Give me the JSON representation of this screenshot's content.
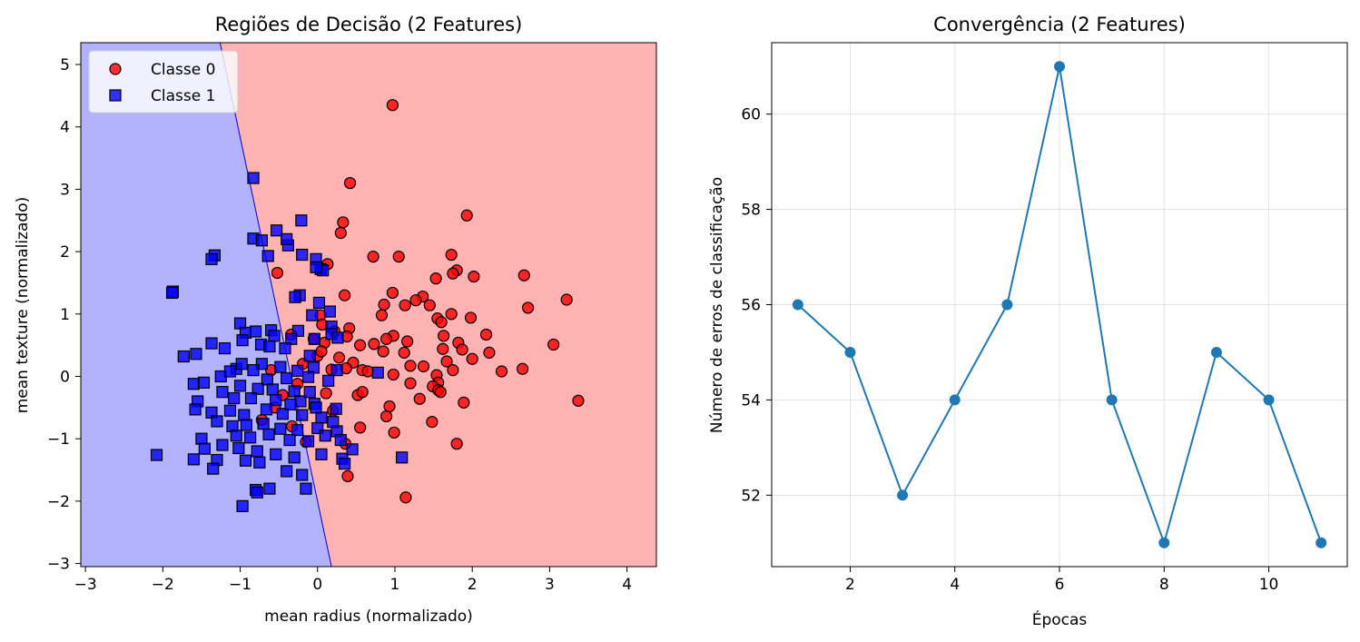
{
  "chart_data": [
    {
      "type": "scatter",
      "title": "Regiões de Decisão (2 Features)",
      "xlabel": "mean radius (normalizado)",
      "ylabel": "mean texture (normalizado)",
      "xlim": [
        -3.06,
        4.38
      ],
      "ylim": [
        -3.05,
        5.35
      ],
      "xticks": [
        -3,
        -2,
        -1,
        0,
        1,
        2,
        3,
        4
      ],
      "yticks": [
        -3,
        -2,
        -1,
        0,
        1,
        2,
        3,
        4,
        5
      ],
      "legend_position": "upper-left",
      "regions": {
        "class0_color": "#ffb2b2",
        "class1_color": "#b2b2ff",
        "boundary": [
          [
            -1.26,
            5.35
          ],
          [
            0.18,
            -3.05
          ]
        ]
      },
      "series": [
        {
          "name": "Classe 0",
          "marker": "circle",
          "color": "#ff0000",
          "points": [
            [
              0.97,
              4.35
            ],
            [
              0.42,
              3.1
            ],
            [
              1.93,
              2.58
            ],
            [
              0.33,
              2.47
            ],
            [
              0.3,
              2.3
            ],
            [
              1.73,
              1.95
            ],
            [
              0.72,
              1.92
            ],
            [
              1.05,
              1.92
            ],
            [
              1.8,
              1.7
            ],
            [
              1.75,
              1.65
            ],
            [
              2.02,
              1.6
            ],
            [
              2.67,
              1.62
            ],
            [
              0.13,
              1.8
            ],
            [
              -0.52,
              1.66
            ],
            [
              0.35,
              1.3
            ],
            [
              0.97,
              1.34
            ],
            [
              1.36,
              1.28
            ],
            [
              1.53,
              1.57
            ],
            [
              1.27,
              1.22
            ],
            [
              1.45,
              1.14
            ],
            [
              1.73,
              1.0
            ],
            [
              1.55,
              0.93
            ],
            [
              1.98,
              0.94
            ],
            [
              2.72,
              1.1
            ],
            [
              3.22,
              1.23
            ],
            [
              0.86,
              1.15
            ],
            [
              1.13,
              1.14
            ],
            [
              0.83,
              0.98
            ],
            [
              0.41,
              0.77
            ],
            [
              0.22,
              0.72
            ],
            [
              0.04,
              0.98
            ],
            [
              0.09,
              0.54
            ],
            [
              0.38,
              0.64
            ],
            [
              0.98,
              0.65
            ],
            [
              0.89,
              0.6
            ],
            [
              1.6,
              0.87
            ],
            [
              1.63,
              0.65
            ],
            [
              2.18,
              0.67
            ],
            [
              0.55,
              0.5
            ],
            [
              0.73,
              0.52
            ],
            [
              1.16,
              0.56
            ],
            [
              0.85,
              0.4
            ],
            [
              1.12,
              0.38
            ],
            [
              1.62,
              0.44
            ],
            [
              1.82,
              0.54
            ],
            [
              1.87,
              0.43
            ],
            [
              2.22,
              0.38
            ],
            [
              3.05,
              0.51
            ],
            [
              1.2,
              0.17
            ],
            [
              1.37,
              0.16
            ],
            [
              1.67,
              0.24
            ],
            [
              1.75,
              0.1
            ],
            [
              2.0,
              0.28
            ],
            [
              2.38,
              0.08
            ],
            [
              2.65,
              0.12
            ],
            [
              0.46,
              0.22
            ],
            [
              0.37,
              0.13
            ],
            [
              0.18,
              0.11
            ],
            [
              -0.0,
              0.33
            ],
            [
              0.58,
              0.1
            ],
            [
              0.65,
              0.08
            ],
            [
              0.98,
              0.03
            ],
            [
              1.54,
              0.02
            ],
            [
              1.56,
              -0.1
            ],
            [
              1.2,
              -0.11
            ],
            [
              1.49,
              -0.16
            ],
            [
              1.56,
              -0.22
            ],
            [
              1.59,
              -0.25
            ],
            [
              0.52,
              -0.3
            ],
            [
              0.58,
              -0.25
            ],
            [
              1.32,
              -0.36
            ],
            [
              1.89,
              -0.42
            ],
            [
              3.37,
              -0.39
            ],
            [
              0.89,
              -0.64
            ],
            [
              0.93,
              -0.48
            ],
            [
              1.48,
              -0.73
            ],
            [
              0.55,
              -0.82
            ],
            [
              0.99,
              -0.9
            ],
            [
              0.36,
              -1.08
            ],
            [
              1.8,
              -1.08
            ],
            [
              0.39,
              -1.6
            ],
            [
              1.14,
              -1.94
            ],
            [
              -0.05,
              0.6
            ],
            [
              0.06,
              0.83
            ],
            [
              -0.34,
              0.67
            ],
            [
              0.05,
              0.4
            ],
            [
              0.28,
              0.3
            ],
            [
              -0.19,
              0.2
            ],
            [
              -0.45,
              -0.3
            ],
            [
              -0.55,
              -0.5
            ],
            [
              -0.33,
              -0.8
            ],
            [
              -0.15,
              -1.05
            ],
            [
              -0.26,
              -0.12
            ],
            [
              -0.6,
              0.1
            ],
            [
              0.11,
              -0.27
            ],
            [
              0.2,
              -0.55
            ],
            [
              -0.72,
              -0.7
            ]
          ]
        },
        {
          "name": "Classe 1",
          "marker": "square",
          "color": "#0000ff",
          "points": [
            [
              -0.83,
              3.18
            ],
            [
              -0.21,
              2.5
            ],
            [
              -0.83,
              2.21
            ],
            [
              -0.72,
              2.18
            ],
            [
              -0.53,
              2.34
            ],
            [
              -0.38,
              2.1
            ],
            [
              -0.4,
              2.2
            ],
            [
              -0.64,
              1.93
            ],
            [
              -0.2,
              1.95
            ],
            [
              -1.33,
              1.94
            ],
            [
              -1.37,
              1.88
            ],
            [
              -0.02,
              1.88
            ],
            [
              0.04,
              1.72
            ],
            [
              0.07,
              1.7
            ],
            [
              -0.02,
              1.75
            ],
            [
              -1.87,
              1.36
            ],
            [
              -1.88,
              1.34
            ],
            [
              -0.23,
              1.3
            ],
            [
              -0.29,
              1.27
            ],
            [
              0.02,
              1.18
            ],
            [
              -0.07,
              0.98
            ],
            [
              0.16,
              1.04
            ],
            [
              0.18,
              0.8
            ],
            [
              -1.0,
              0.85
            ],
            [
              -0.93,
              0.7
            ],
            [
              -0.8,
              0.72
            ],
            [
              -0.6,
              0.74
            ],
            [
              -0.56,
              0.65
            ],
            [
              -0.25,
              0.73
            ],
            [
              -0.04,
              0.6
            ],
            [
              0.18,
              0.68
            ],
            [
              -0.34,
              0.6
            ],
            [
              -1.37,
              0.53
            ],
            [
              -0.97,
              0.58
            ],
            [
              -0.73,
              0.51
            ],
            [
              -0.62,
              0.48
            ],
            [
              -0.42,
              0.45
            ],
            [
              -1.57,
              0.36
            ],
            [
              -1.73,
              0.32
            ],
            [
              -1.2,
              0.45
            ],
            [
              -0.1,
              0.33
            ],
            [
              0.26,
              0.62
            ],
            [
              -1.05,
              0.12
            ],
            [
              -0.98,
              0.2
            ],
            [
              -0.72,
              0.2
            ],
            [
              -0.48,
              0.15
            ],
            [
              -0.26,
              0.09
            ],
            [
              -0.05,
              0.14
            ],
            [
              0.25,
              0.1
            ],
            [
              0.78,
              0.06
            ],
            [
              -1.25,
              0.0
            ],
            [
              -1.13,
              0.08
            ],
            [
              -0.83,
              0.1
            ],
            [
              -0.65,
              -0.05
            ],
            [
              -0.4,
              -0.03
            ],
            [
              -0.12,
              -0.01
            ],
            [
              0.14,
              -0.07
            ],
            [
              -1.6,
              -0.12
            ],
            [
              -1.47,
              -0.1
            ],
            [
              -1.0,
              -0.15
            ],
            [
              -0.77,
              -0.2
            ],
            [
              -0.58,
              -0.21
            ],
            [
              -0.3,
              -0.24
            ],
            [
              -1.23,
              -0.25
            ],
            [
              -1.08,
              -0.35
            ],
            [
              -0.86,
              -0.35
            ],
            [
              -0.54,
              -0.38
            ],
            [
              -0.22,
              -0.4
            ],
            [
              -0.04,
              -0.44
            ],
            [
              0.24,
              -0.52
            ],
            [
              -1.55,
              -0.4
            ],
            [
              -1.58,
              -0.53
            ],
            [
              -1.37,
              -0.58
            ],
            [
              -1.13,
              -0.55
            ],
            [
              -0.95,
              -0.62
            ],
            [
              -0.66,
              -0.53
            ],
            [
              -0.45,
              -0.6
            ],
            [
              -0.2,
              -0.62
            ],
            [
              0.05,
              -0.66
            ],
            [
              -1.3,
              -0.72
            ],
            [
              -1.1,
              -0.8
            ],
            [
              -0.92,
              -0.78
            ],
            [
              -0.7,
              -0.76
            ],
            [
              -0.48,
              -0.84
            ],
            [
              -0.26,
              -0.86
            ],
            [
              0.0,
              -0.83
            ],
            [
              0.25,
              -0.88
            ],
            [
              -1.05,
              -0.95
            ],
            [
              -0.87,
              -0.98
            ],
            [
              -0.63,
              -0.93
            ],
            [
              -0.36,
              -1.02
            ],
            [
              -0.12,
              -1.04
            ],
            [
              0.3,
              -1.02
            ],
            [
              -1.5,
              -1.0
            ],
            [
              -1.46,
              -1.16
            ],
            [
              -1.23,
              -1.1
            ],
            [
              -1.02,
              -1.15
            ],
            [
              -0.78,
              -1.2
            ],
            [
              -0.54,
              -1.25
            ],
            [
              -0.3,
              -1.3
            ],
            [
              0.05,
              -1.25
            ],
            [
              0.32,
              -1.32
            ],
            [
              0.45,
              -1.17
            ],
            [
              -2.08,
              -1.26
            ],
            [
              -1.6,
              -1.33
            ],
            [
              -1.3,
              -1.34
            ],
            [
              -1.35,
              -1.48
            ],
            [
              -0.93,
              -1.35
            ],
            [
              -0.75,
              -1.38
            ],
            [
              -0.4,
              -1.52
            ],
            [
              -0.2,
              -1.58
            ],
            [
              0.35,
              -1.4
            ],
            [
              1.09,
              -1.3
            ],
            [
              -0.8,
              -1.82
            ],
            [
              -0.62,
              -1.8
            ],
            [
              -0.78,
              -1.86
            ],
            [
              -0.15,
              -1.8
            ],
            [
              -0.97,
              -2.08
            ],
            [
              -0.02,
              -0.5
            ],
            [
              0.2,
              -0.73
            ],
            [
              -0.35,
              -0.45
            ],
            [
              -0.1,
              -0.25
            ],
            [
              0.1,
              -0.95
            ]
          ]
        }
      ]
    },
    {
      "type": "line",
      "title": "Convergência (2 Features)",
      "xlabel": "Épocas",
      "ylabel": "Número de erros de classificação",
      "x": [
        1,
        2,
        3,
        4,
        5,
        6,
        7,
        8,
        9,
        10,
        11
      ],
      "values": [
        56,
        55,
        52,
        54,
        56,
        61,
        54,
        51,
        55,
        54,
        51
      ],
      "xlim": [
        0.5,
        11.5
      ],
      "ylim": [
        50.5,
        61.5
      ],
      "xticks": [
        2,
        4,
        6,
        8,
        10
      ],
      "yticks": [
        52,
        54,
        56,
        58,
        60
      ],
      "grid": true,
      "color": "#1f77b4",
      "marker": "circle"
    }
  ]
}
